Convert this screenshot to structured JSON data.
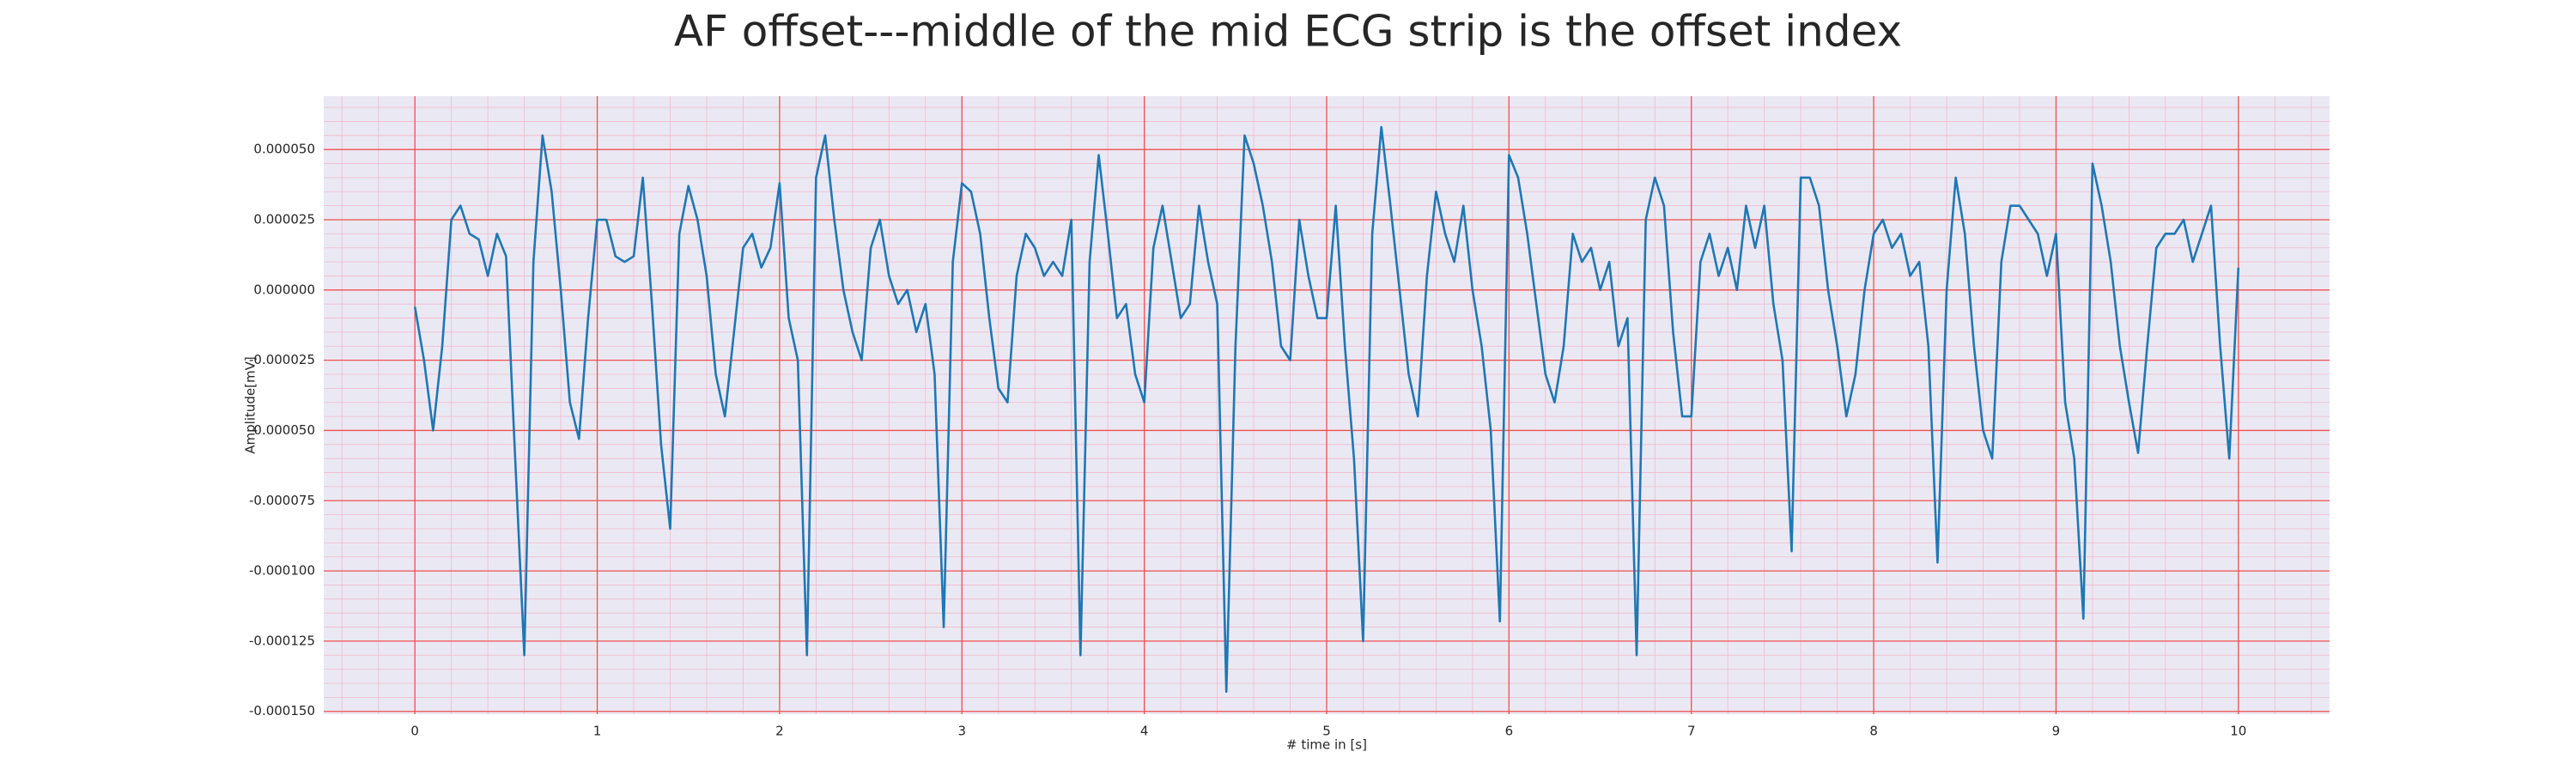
{
  "chart_data": {
    "type": "line",
    "title": "AF offset---middle of the mid ECG strip is the offset index",
    "xlabel": "# time in [s]",
    "ylabel": "Amplitude[mV]",
    "color": "#1f77b4",
    "grid": true,
    "minor_grid": true,
    "xlim": [
      -0.5,
      10.5
    ],
    "ylim": [
      -0.000151,
      6.9e-05
    ],
    "xticks": [
      0,
      1,
      2,
      3,
      4,
      5,
      6,
      7,
      8,
      9,
      10
    ],
    "yticks": [
      {
        "value": -0.00015,
        "label": "-0.000150"
      },
      {
        "value": -0.000125,
        "label": "-0.000125"
      },
      {
        "value": -0.0001,
        "label": "-0.000100"
      },
      {
        "value": -7.5e-05,
        "label": "-0.000075"
      },
      {
        "value": -5e-05,
        "label": "-0.000050"
      },
      {
        "value": -2.5e-05,
        "label": "-0.000025"
      },
      {
        "value": 0,
        "label": "0.000000"
      },
      {
        "value": 2.5e-05,
        "label": "0.000025"
      },
      {
        "value": 5e-05,
        "label": "0.000050"
      }
    ],
    "x": [
      0,
      0.05,
      0.1,
      0.15,
      0.2,
      0.25,
      0.3,
      0.35,
      0.4,
      0.45,
      0.5,
      0.55,
      0.6,
      0.65,
      0.7,
      0.75,
      0.8,
      0.85,
      0.9,
      0.95,
      1,
      1.05,
      1.1,
      1.15,
      1.2,
      1.25,
      1.3,
      1.35,
      1.4,
      1.45,
      1.5,
      1.55,
      1.6,
      1.65,
      1.7,
      1.75,
      1.8,
      1.85,
      1.9,
      1.95,
      2,
      2.05,
      2.1,
      2.15,
      2.2,
      2.25,
      2.3,
      2.35,
      2.4,
      2.45,
      2.5,
      2.55,
      2.6,
      2.65,
      2.7,
      2.75,
      2.8,
      2.85,
      2.9,
      2.95,
      3,
      3.05,
      3.1,
      3.15,
      3.2,
      3.25,
      3.3,
      3.35,
      3.4,
      3.45,
      3.5,
      3.55,
      3.6,
      3.65,
      3.7,
      3.75,
      3.8,
      3.85,
      3.9,
      3.95,
      4,
      4.05,
      4.1,
      4.15,
      4.2,
      4.25,
      4.3,
      4.35,
      4.4,
      4.45,
      4.5,
      4.55,
      4.6,
      4.65,
      4.7,
      4.75,
      4.8,
      4.85,
      4.9,
      4.95,
      5,
      5.05,
      5.1,
      5.15,
      5.2,
      5.25,
      5.3,
      5.35,
      5.4,
      5.45,
      5.5,
      5.55,
      5.6,
      5.65,
      5.7,
      5.75,
      5.8,
      5.85,
      5.9,
      5.95,
      6,
      6.05,
      6.1,
      6.15,
      6.2,
      6.25,
      6.3,
      6.35,
      6.4,
      6.45,
      6.5,
      6.55,
      6.6,
      6.65,
      6.7,
      6.75,
      6.8,
      6.85,
      6.9,
      6.95,
      7,
      7.05,
      7.1,
      7.15,
      7.2,
      7.25,
      7.3,
      7.35,
      7.4,
      7.45,
      7.5,
      7.55,
      7.6,
      7.65,
      7.7,
      7.75,
      7.8,
      7.85,
      7.9,
      7.95,
      8,
      8.05,
      8.1,
      8.15,
      8.2,
      8.25,
      8.3,
      8.35,
      8.4,
      8.45,
      8.5,
      8.55,
      8.6,
      8.65,
      8.7,
      8.75,
      8.8,
      8.85,
      8.9,
      8.95,
      9,
      9.05,
      9.1,
      9.15,
      9.2,
      9.25,
      9.3,
      9.35,
      9.4,
      9.45,
      9.5,
      9.55,
      9.6,
      9.65,
      9.7,
      9.75,
      9.8,
      9.85,
      9.9,
      9.95,
      10
    ],
    "values": [
      -6e-06,
      -2.5e-05,
      -5e-05,
      -2e-05,
      2.5e-05,
      3e-05,
      2e-05,
      1.8e-05,
      5e-06,
      2e-05,
      1.2e-05,
      -6e-05,
      -0.00013,
      1e-05,
      5.5e-05,
      3.5e-05,
      0,
      -4e-05,
      -5.3e-05,
      -1e-05,
      2.5e-05,
      2.5e-05,
      1.2e-05,
      1e-05,
      1.2e-05,
      4e-05,
      -5e-06,
      -5.5e-05,
      -8.5e-05,
      2e-05,
      3.7e-05,
      2.5e-05,
      5e-06,
      -3e-05,
      -4.5e-05,
      -1.5e-05,
      1.5e-05,
      2e-05,
      8e-06,
      1.5e-05,
      3.8e-05,
      -1e-05,
      -2.5e-05,
      -0.00013,
      4e-05,
      5.5e-05,
      2.5e-05,
      0,
      -1.5e-05,
      -2.5e-05,
      1.5e-05,
      2.5e-05,
      5e-06,
      -5e-06,
      0,
      -1.5e-05,
      -5e-06,
      -3e-05,
      -0.00012,
      1e-05,
      3.8e-05,
      3.5e-05,
      2e-05,
      -1e-05,
      -3.5e-05,
      -4e-05,
      5e-06,
      2e-05,
      1.5e-05,
      5e-06,
      1e-05,
      5e-06,
      2.5e-05,
      -0.00013,
      1e-05,
      4.8e-05,
      2e-05,
      -1e-05,
      -5e-06,
      -3e-05,
      -4e-05,
      1.5e-05,
      3e-05,
      1e-05,
      -1e-05,
      -5e-06,
      3e-05,
      1e-05,
      -5e-06,
      -0.000143,
      -2e-05,
      5.5e-05,
      4.5e-05,
      3e-05,
      1e-05,
      -2e-05,
      -2.5e-05,
      2.5e-05,
      5e-06,
      -1e-05,
      -1e-05,
      3e-05,
      -2e-05,
      -6e-05,
      -0.000125,
      2e-05,
      5.8e-05,
      3e-05,
      0,
      -3e-05,
      -4.5e-05,
      5e-06,
      3.5e-05,
      2e-05,
      1e-05,
      3e-05,
      0,
      -2e-05,
      -5e-05,
      -0.000118,
      4.8e-05,
      4e-05,
      2e-05,
      -5e-06,
      -3e-05,
      -4e-05,
      -2e-05,
      2e-05,
      1e-05,
      1.5e-05,
      0,
      1e-05,
      -2e-05,
      -1e-05,
      -0.00013,
      2.5e-05,
      4e-05,
      3e-05,
      -1.5e-05,
      -4.5e-05,
      -4.5e-05,
      1e-05,
      2e-05,
      5e-06,
      1.5e-05,
      0,
      3e-05,
      1.5e-05,
      3e-05,
      -5e-06,
      -2.5e-05,
      -9.3e-05,
      4e-05,
      4e-05,
      3e-05,
      0,
      -2e-05,
      -4.5e-05,
      -3e-05,
      0,
      2e-05,
      2.5e-05,
      1.5e-05,
      2e-05,
      5e-06,
      1e-05,
      -2e-05,
      -9.7e-05,
      0,
      4e-05,
      2e-05,
      -2e-05,
      -5e-05,
      -6e-05,
      1e-05,
      3e-05,
      3e-05,
      2.5e-05,
      2e-05,
      5e-06,
      2e-05,
      -4e-05,
      -6e-05,
      -0.000117,
      4.5e-05,
      3e-05,
      1e-05,
      -2e-05,
      -4e-05,
      -5.8e-05,
      -2e-05,
      1.5e-05,
      2e-05,
      2e-05,
      2.5e-05,
      1e-05,
      2e-05,
      3e-05,
      -2e-05,
      -6e-05,
      8e-06
    ]
  }
}
